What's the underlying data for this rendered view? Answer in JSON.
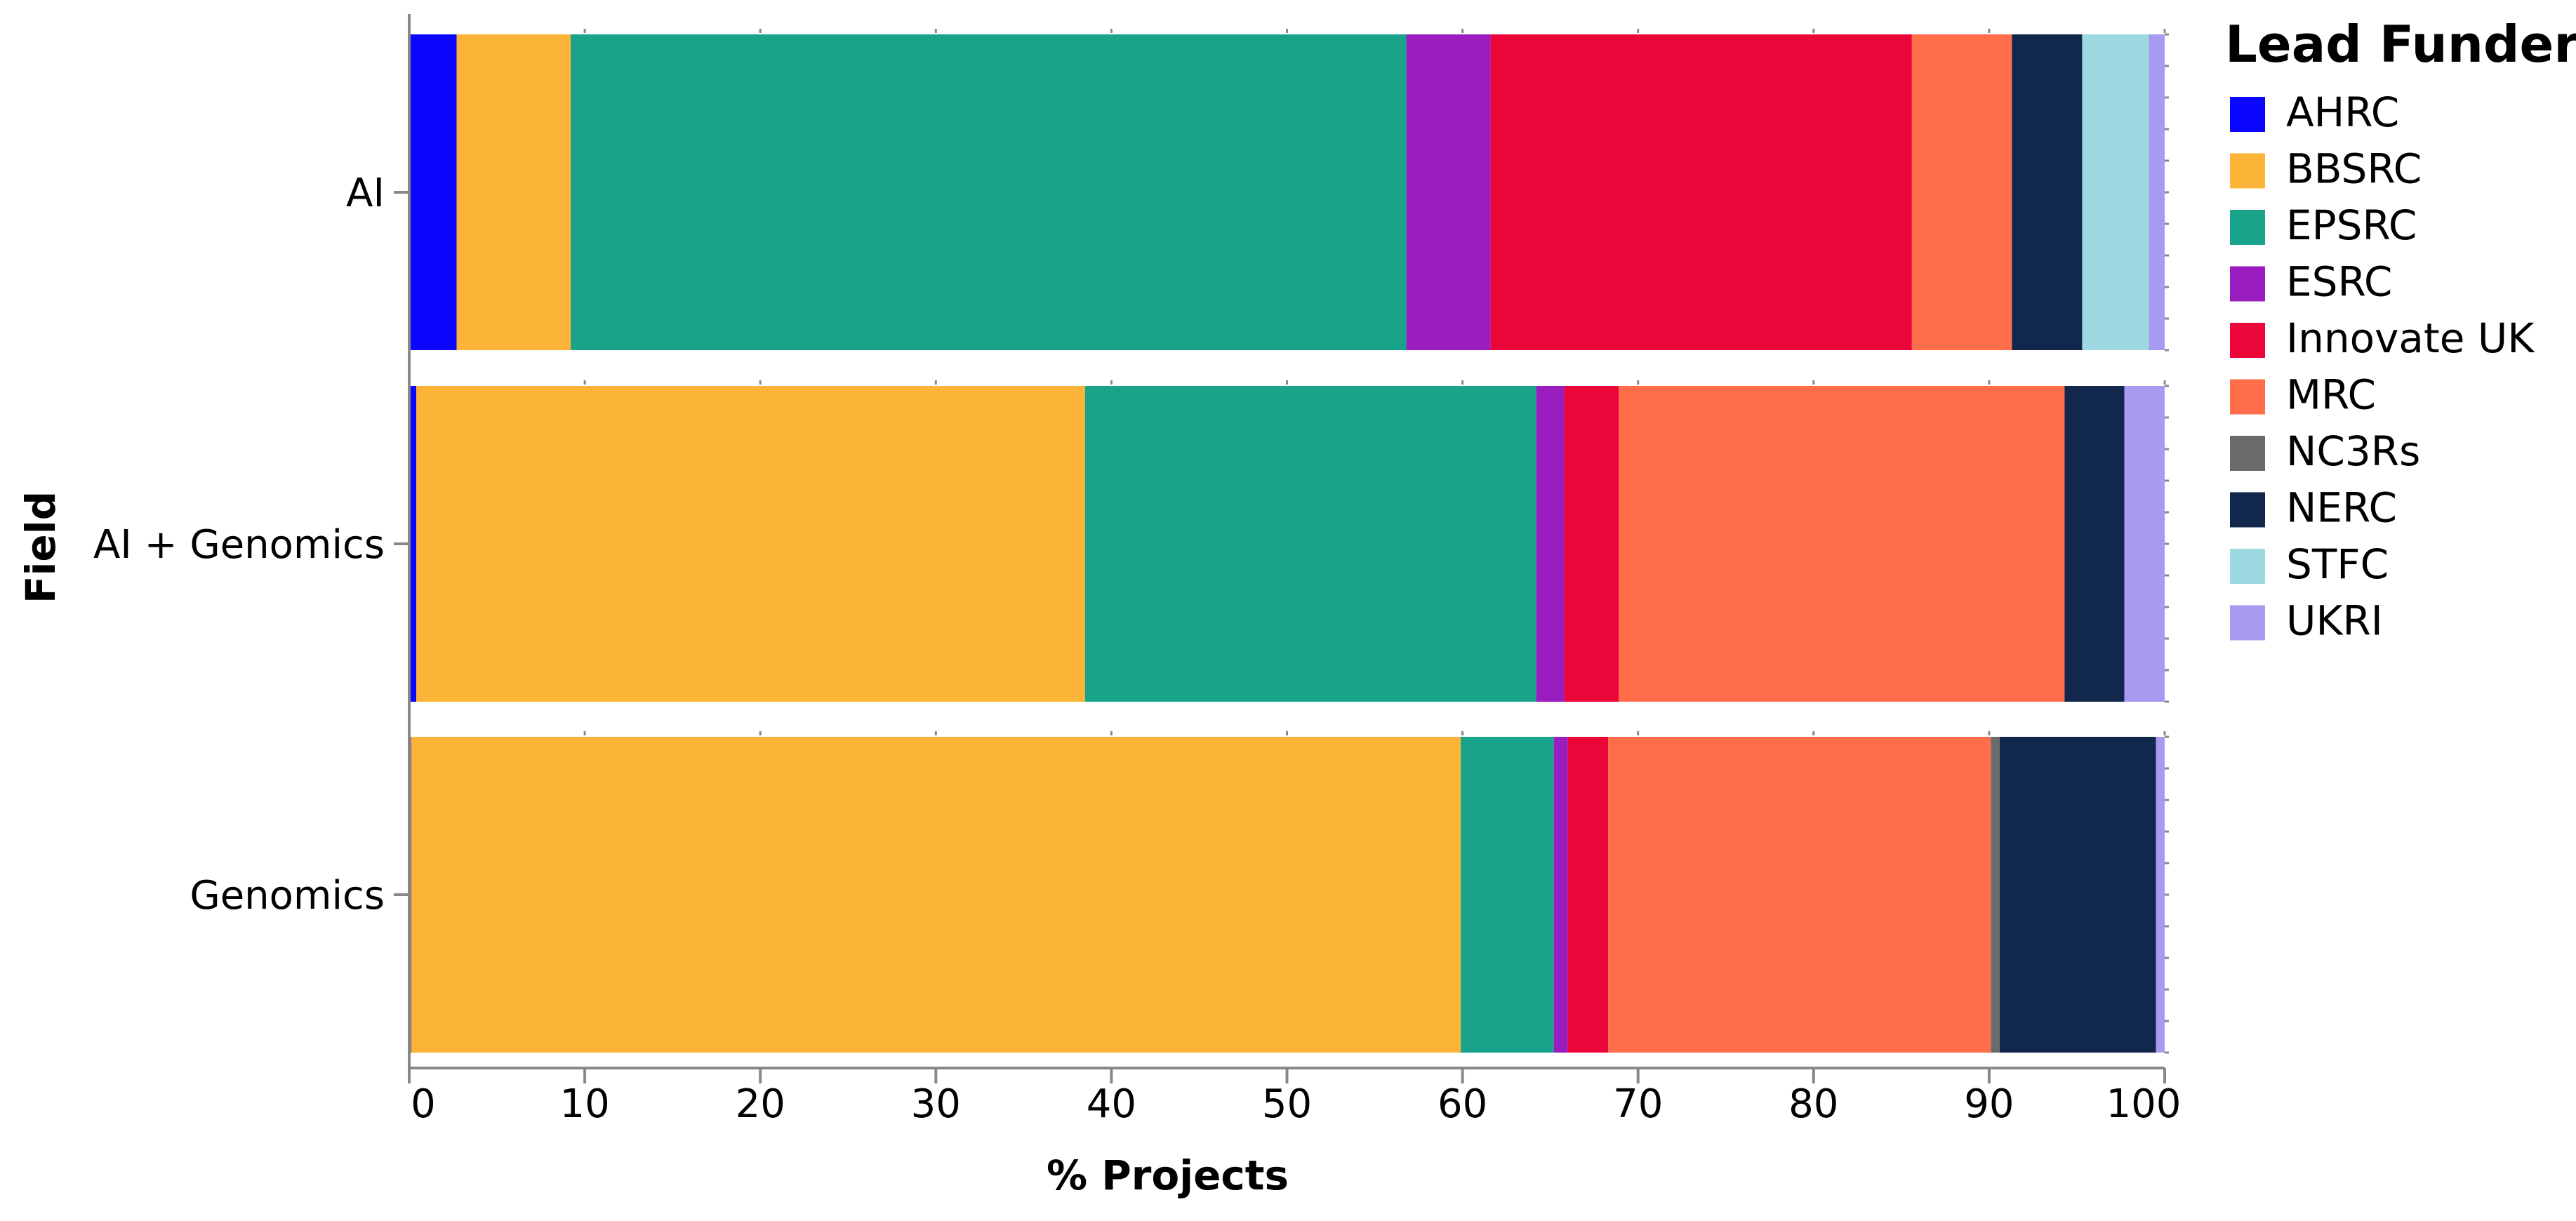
{
  "chart_data": {
    "type": "bar",
    "orientation": "horizontal",
    "stacked": true,
    "xlabel": "% Projects",
    "ylabel": "Field",
    "xlim": [
      0,
      100
    ],
    "x_ticks": [
      "0",
      "10",
      "20",
      "30",
      "40",
      "50",
      "60",
      "70",
      "80",
      "90",
      "100"
    ],
    "categories": [
      "AI",
      "AI + Genomics",
      "Genomics"
    ],
    "legend": {
      "title": "Lead Funder",
      "position": "top-right"
    },
    "grid": false,
    "series": [
      {
        "name": "AHRC",
        "color": "#0b07ff",
        "values": [
          2.7,
          0.4,
          0.1
        ]
      },
      {
        "name": "BBSRC",
        "color": "#fbb437",
        "values": [
          6.5,
          38.1,
          59.8
        ]
      },
      {
        "name": "EPSRC",
        "color": "#19a38b",
        "values": [
          47.6,
          25.7,
          5.3
        ]
      },
      {
        "name": "ESRC",
        "color": "#9a1dbf",
        "values": [
          4.8,
          1.6,
          0.8
        ]
      },
      {
        "name": "Innovate UK",
        "color": "#ec0539",
        "values": [
          24.0,
          3.1,
          2.3
        ]
      },
      {
        "name": "MRC",
        "color": "#ff6d4a",
        "values": [
          5.7,
          25.4,
          21.8
        ]
      },
      {
        "name": "NC3Rs",
        "color": "#6b6b6b",
        "values": [
          0.0,
          0.0,
          0.5
        ]
      },
      {
        "name": "NERC",
        "color": "#11274b",
        "values": [
          4.0,
          3.4,
          8.9
        ]
      },
      {
        "name": "STFC",
        "color": "#9ed9e1",
        "values": [
          3.8,
          0.0,
          0.0
        ]
      },
      {
        "name": "UKRI",
        "color": "#a89af1",
        "values": [
          0.9,
          2.3,
          0.5
        ]
      }
    ]
  }
}
